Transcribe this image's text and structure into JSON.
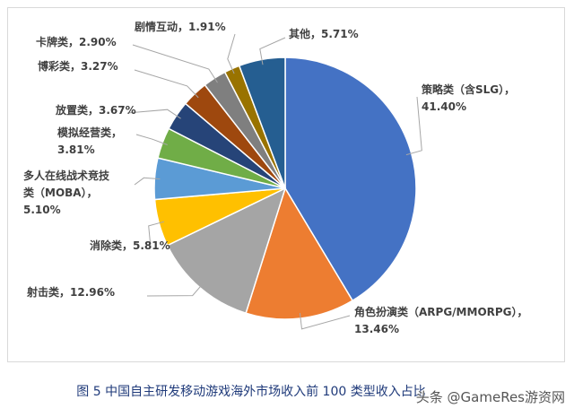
{
  "chart_data": {
    "type": "pie",
    "slices": [
      {
        "label": "策略类（含SLG）",
        "value": 41.4,
        "value_text": "41.40%",
        "color": "#4472C4"
      },
      {
        "label": "角色扮演类（ARPG/MMORPG）",
        "value": 13.46,
        "value_text": "13.46%",
        "color": "#ED7D31"
      },
      {
        "label": "射击类",
        "value": 12.96,
        "value_text": "12.96%",
        "color": "#A5A5A5"
      },
      {
        "label": "消除类",
        "value": 5.81,
        "value_text": "5.81%",
        "color": "#FFC000"
      },
      {
        "label": "多人在线战术竞技类（MOBA）",
        "value": 5.1,
        "value_text": "5.10%",
        "color": "#5B9BD5"
      },
      {
        "label": "模拟经营类",
        "value": 3.81,
        "value_text": "3.81%",
        "color": "#70AD47"
      },
      {
        "label": "放置类",
        "value": 3.67,
        "value_text": "3.67%",
        "color": "#264478"
      },
      {
        "label": "博彩类",
        "value": 3.27,
        "value_text": "3.27%",
        "color": "#9E480E"
      },
      {
        "label": "卡牌类",
        "value": 2.9,
        "value_text": "2.90%",
        "color": "#7F7F7F"
      },
      {
        "label": "剧情互动",
        "value": 1.91,
        "value_text": "1.91%",
        "color": "#997300"
      },
      {
        "label": "其他",
        "value": 5.71,
        "value_text": "5.71%",
        "color": "#255E91"
      }
    ],
    "start_angle_deg": 0,
    "direction": "clockwise",
    "label_lines": [
      [
        "策略类（含SLG），",
        "41.40%"
      ],
      [
        "角色扮演类（ARPG/MMORPG），",
        "13.46%"
      ],
      [
        "射击类，12.96%"
      ],
      [
        "消除类，5.81%"
      ],
      [
        "多人在线战术竞技",
        "类（MOBA），",
        "5.10%"
      ],
      [
        "模拟经营类，",
        "3.81%"
      ],
      [
        "放置类，3.67%"
      ],
      [
        "博彩类，3.27%"
      ],
      [
        "卡牌类，2.90%"
      ],
      [
        "剧情互动，1.91%"
      ],
      [
        "其他，5.71%"
      ]
    ]
  },
  "caption": "图 5 中国自主研发移动游戏海外市场收入前 100 类型收入占比",
  "watermark": "头条 @GameRes游资网"
}
